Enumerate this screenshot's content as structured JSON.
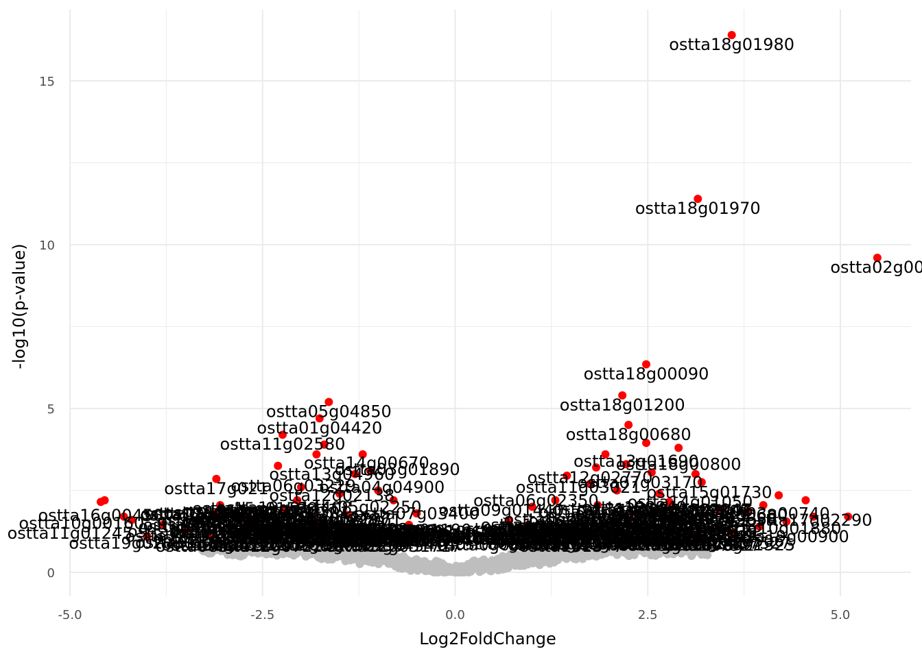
{
  "chart_data": {
    "type": "scatter",
    "title": "",
    "xlabel": "Log2FoldChange",
    "ylabel": "-log10(p-value)",
    "xlim": [
      -5.0,
      5.0
    ],
    "ylim": [
      0,
      15
    ],
    "x_ticks": [
      "-5.0",
      "-2.5",
      "0.0",
      "2.5",
      "5.0"
    ],
    "y_ticks": [
      "0",
      "5",
      "10",
      "15"
    ],
    "grid": true,
    "legend": "none",
    "colors": {
      "significant": "#ff0000",
      "background": "#bebebe",
      "label": "#000000"
    },
    "labeled_points": [
      {
        "label": "ostta18g01980",
        "x": 3.59,
        "y": 16.4
      },
      {
        "label": "ostta18g01970",
        "x": 3.15,
        "y": 11.4
      },
      {
        "label": "ostta02g00",
        "x": 5.48,
        "y": 9.6
      },
      {
        "label": "ostta18g00090",
        "x": 2.48,
        "y": 6.35
      },
      {
        "label": "ostta18g01200",
        "x": 2.17,
        "y": 5.4
      },
      {
        "label": "ostta18g00680",
        "x": 2.25,
        "y": 4.5
      },
      {
        "label": "ostta05g04850",
        "x": -1.64,
        "y": 5.2
      },
      {
        "label": "ostta01g04420",
        "x": -1.76,
        "y": 4.7
      },
      {
        "label": "ostta11g02580",
        "x": -2.24,
        "y": 4.2
      },
      {
        "label": "ostta17g021",
        "x": -3.1,
        "y": 2.85
      }
    ],
    "red_points": [
      [
        3.59,
        16.4
      ],
      [
        3.15,
        11.4
      ],
      [
        5.48,
        9.6
      ],
      [
        2.48,
        6.35
      ],
      [
        2.17,
        5.4
      ],
      [
        2.25,
        4.5
      ],
      [
        2.48,
        3.95
      ],
      [
        2.9,
        3.8
      ],
      [
        1.95,
        3.6
      ],
      [
        1.83,
        3.2
      ],
      [
        2.22,
        3.3
      ],
      [
        2.55,
        3.05
      ],
      [
        3.12,
        3.0
      ],
      [
        3.2,
        2.75
      ],
      [
        2.65,
        2.4
      ],
      [
        1.45,
        2.95
      ],
      [
        1.75,
        2.7
      ],
      [
        4.2,
        2.35
      ],
      [
        4.55,
        2.2
      ],
      [
        4.0,
        2.05
      ],
      [
        3.8,
        1.85
      ],
      [
        3.45,
        1.9
      ],
      [
        2.78,
        2.15
      ],
      [
        2.1,
        2.5
      ],
      [
        1.3,
        2.2
      ],
      [
        1.0,
        2.0
      ],
      [
        0.7,
        1.6
      ],
      [
        0.95,
        1.45
      ],
      [
        4.65,
        1.7
      ],
      [
        4.3,
        1.55
      ],
      [
        5.1,
        1.7
      ],
      [
        3.95,
        1.4
      ],
      [
        3.6,
        1.2
      ],
      [
        3.1,
        1.15
      ],
      [
        2.0,
        1.1
      ],
      [
        1.6,
        1.25
      ],
      [
        1.15,
        1.2
      ],
      [
        2.85,
        1.55
      ],
      [
        2.35,
        1.8
      ],
      [
        1.85,
        2.05
      ],
      [
        -1.64,
        5.2
      ],
      [
        -1.76,
        4.7
      ],
      [
        -2.24,
        4.2
      ],
      [
        -1.7,
        3.9
      ],
      [
        -1.8,
        3.6
      ],
      [
        -1.2,
        3.6
      ],
      [
        -1.1,
        3.1
      ],
      [
        -1.3,
        3.0
      ],
      [
        -2.3,
        3.25
      ],
      [
        -3.1,
        2.85
      ],
      [
        -2.0,
        2.6
      ],
      [
        -1.5,
        2.4
      ],
      [
        -1.0,
        2.5
      ],
      [
        -0.8,
        2.2
      ],
      [
        -3.05,
        2.05
      ],
      [
        -3.1,
        1.8
      ],
      [
        -4.55,
        2.2
      ],
      [
        -4.6,
        2.15
      ],
      [
        -4.3,
        1.7
      ],
      [
        -4.2,
        1.6
      ],
      [
        -3.8,
        1.45
      ],
      [
        -3.5,
        1.3
      ],
      [
        -2.7,
        1.7
      ],
      [
        -2.2,
        1.9
      ],
      [
        -1.8,
        1.5
      ],
      [
        -1.4,
        1.75
      ],
      [
        -0.6,
        1.45
      ],
      [
        -0.9,
        1.25
      ],
      [
        -2.5,
        1.3
      ],
      [
        -3.2,
        1.15
      ],
      [
        -4.0,
        1.1
      ],
      [
        -1.6,
        1.15
      ],
      [
        -2.05,
        2.2
      ],
      [
        -0.5,
        1.8
      ]
    ],
    "cluster_labels": [
      {
        "label": "ostta14g00670",
        "x": -1.15,
        "y": 3.55
      },
      {
        "label": "ostta13g04960",
        "x": -1.6,
        "y": 3.2
      },
      {
        "label": "ostta03g01890",
        "x": -0.75,
        "y": 3.35
      },
      {
        "label": "ostta06g03229",
        "x": -2.1,
        "y": 2.85
      },
      {
        "label": "ostta04g04900",
        "x": -0.95,
        "y": 2.8
      },
      {
        "label": "ostta12g02138",
        "x": -1.6,
        "y": 2.55
      },
      {
        "label": "ostta05g02250",
        "x": -1.25,
        "y": 2.2
      },
      {
        "label": "ostta07g03400",
        "x": -0.5,
        "y": 2.0
      },
      {
        "label": "ostta15g01590",
        "x": -2.6,
        "y": 2.15
      },
      {
        "label": "ostta09g00520",
        "x": -3.3,
        "y": 1.6
      },
      {
        "label": "ostta16g00450",
        "x": -4.6,
        "y": 1.95
      },
      {
        "label": "ostta10g00160",
        "x": -4.85,
        "y": 1.7
      },
      {
        "label": "ostta11g01245",
        "x": -5.0,
        "y": 1.4
      },
      {
        "label": "ostta19g02050",
        "x": -4.2,
        "y": 1.1
      },
      {
        "label": "ostta08g03312",
        "x": -3.0,
        "y": 1.05
      },
      {
        "label": "ostta02g04410",
        "x": -1.9,
        "y": 1.05
      },
      {
        "label": "ostta20g01560",
        "x": -1.2,
        "y": 1.2
      },
      {
        "label": "ostta04g01190",
        "x": -0.6,
        "y": 1.5
      },
      {
        "label": "ostta13g01690",
        "x": 2.35,
        "y": 3.6
      },
      {
        "label": "ostta18g00800",
        "x": 2.9,
        "y": 3.5
      },
      {
        "label": "ostta12g02770",
        "x": 1.75,
        "y": 3.1
      },
      {
        "label": "ostta11g03021",
        "x": 1.6,
        "y": 2.8
      },
      {
        "label": "ostta07g03170",
        "x": 2.4,
        "y": 2.95
      },
      {
        "label": "ostta15g01730",
        "x": 3.3,
        "y": 2.65
      },
      {
        "label": "ostta06g02350",
        "x": 1.05,
        "y": 2.4
      },
      {
        "label": "ostta14g01050",
        "x": 3.05,
        "y": 2.35
      },
      {
        "label": "ostta03g00740",
        "x": 4.05,
        "y": 2.0
      },
      {
        "label": "ostta17g02290",
        "x": 4.6,
        "y": 1.8
      },
      {
        "label": "ostta09g01440",
        "x": 0.6,
        "y": 2.1
      },
      {
        "label": "ostta16g02830",
        "x": 1.9,
        "y": 2.05
      },
      {
        "label": "ostta05g00680",
        "x": 3.5,
        "y": 1.95
      },
      {
        "label": "ostta10g01880",
        "x": 4.2,
        "y": 1.55
      },
      {
        "label": "ostta19g00900",
        "x": 4.3,
        "y": 1.3
      },
      {
        "label": "ostta01g02630",
        "x": 2.8,
        "y": 1.35
      },
      {
        "label": "ostta08g01325",
        "x": 3.6,
        "y": 1.05
      },
      {
        "label": "ostta21g00410",
        "x": 1.5,
        "y": 1.1
      },
      {
        "label": "ostta02g03770",
        "x": 0.9,
        "y": 1.5
      },
      {
        "label": "ostta20g00950",
        "x": 2.3,
        "y": 1.6
      }
    ]
  }
}
